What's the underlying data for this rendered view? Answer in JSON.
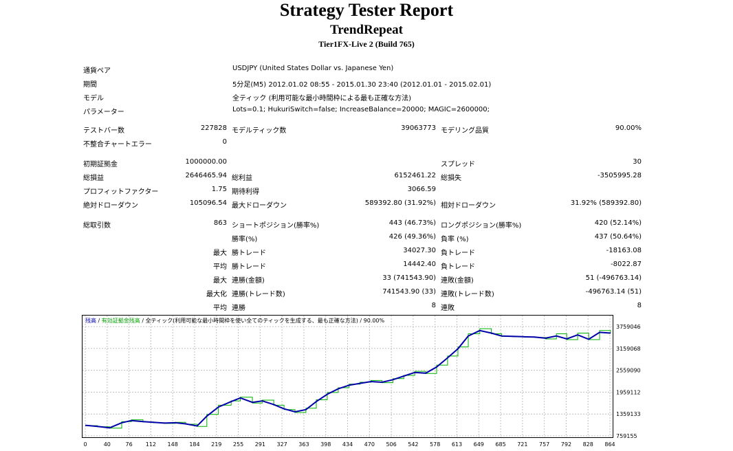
{
  "header": {
    "title": "Strategy Tester Report",
    "expert": "TrendRepeat",
    "server": "Tier1FX-Live 2 (Build 765)"
  },
  "info": [
    {
      "label": "通貨ペア",
      "value": "USDJPY (United States Dollar vs. Japanese Yen)"
    },
    {
      "label": "期間",
      "value": "5分足(M5) 2012.01.02 08:55 - 2015.01.30 23:40 (2012.01.01 - 2015.02.01)"
    },
    {
      "label": "モデル",
      "value": "全ティック (利用可能な最小時間枠による最も正確な方法)"
    },
    {
      "label": "パラメーター",
      "value": "Lots=0.1; HukuriSwitch=false; IncreaseBalance=20000; MAGIC=2600000;"
    }
  ],
  "stats": {
    "bars_label": "テストバー数",
    "bars": "227828",
    "ticks_label": "モデルティック数",
    "ticks": "39063773",
    "quality_label": "モデリング品質",
    "quality": "90.00%",
    "mismatch_label": "不整合チャートエラー",
    "mismatch": "0",
    "deposit_label": "初期証拠金",
    "deposit": "1000000.00",
    "spread_label": "スプレッド",
    "spread": "30",
    "net_label": "総損益",
    "net": "2646465.94",
    "gross_profit_label": "総利益",
    "gross_profit": "6152461.22",
    "gross_loss_label": "総損失",
    "gross_loss": "-3505995.28",
    "pf_label": "プロフィットファクター",
    "pf": "1.75",
    "expected_label": "期待利得",
    "expected": "3066.59",
    "abs_dd_label": "絶対ドローダウン",
    "abs_dd": "105096.54",
    "max_dd_label": "最大ドローダウン",
    "max_dd": "589392.80 (31.92%)",
    "rel_dd_label": "相対ドローダウン",
    "rel_dd": "31.92% (589392.80)",
    "total_trades_label": "総取引数",
    "total_trades": "863",
    "short_label": "ショートポジション(勝率%)",
    "short": "443 (46.73%)",
    "long_label": "ロングポジション(勝率%)",
    "long": "420 (52.14%)",
    "win_rate_label": "勝率(%)",
    "win_rate": "426 (49.36%)",
    "loss_rate_label": "負率 (%)",
    "loss_rate": "437 (50.64%)",
    "max_label": "最大",
    "avg_label": "平均",
    "maximal_label": "最大化",
    "profit_trade_label": "勝トレード",
    "largest_profit": "34027.30",
    "loss_trade_label": "負トレード",
    "largest_loss": "-18163.08",
    "avg_profit": "14442.40",
    "avg_loss": "-8022.87",
    "cons_wins_money_label": "連勝(金額)",
    "cons_wins_money": "33 (741543.90)",
    "cons_losses_money_label": "連敗(金額)",
    "cons_losses_money": "51 (-496763.14)",
    "cons_profit_count_label": "連勝(トレード数)",
    "cons_profit_count": "741543.90 (33)",
    "cons_loss_count_label": "連敗(トレード数)",
    "cons_loss_count": "-496763.14 (51)",
    "avg_cons_wins_label": "連勝",
    "avg_cons_wins": "8",
    "avg_cons_losses_label": "連敗",
    "avg_cons_losses": "8"
  },
  "chart_data": {
    "type": "line",
    "legend": {
      "balance": "残高",
      "sep1": " / ",
      "equity": "有効証拠金残高",
      "sep2": " / ",
      "model": "全ティック(利用可能な最小時間枠を使い全てのティックを生成する、最も正確な方法) / 90.00%"
    },
    "colors": {
      "balance": "#0000a8",
      "equity": "#00b000",
      "grid": "#c0c0c0"
    },
    "xticks": [
      "0",
      "40",
      "76",
      "112",
      "148",
      "184",
      "219",
      "255",
      "291",
      "327",
      "363",
      "398",
      "434",
      "470",
      "506",
      "542",
      "578",
      "613",
      "649",
      "685",
      "721",
      "757",
      "792",
      "828",
      "864"
    ],
    "yticks": [
      "3759046",
      "3159068",
      "2559090",
      "1959112",
      "1359133",
      "759155"
    ],
    "ylim": [
      759155,
      3759046
    ],
    "xlim": [
      0,
      863
    ],
    "series": [
      {
        "key": "balance",
        "x": [
          0,
          20,
          40,
          60,
          76,
          95,
          112,
          130,
          148,
          165,
          184,
          200,
          219,
          240,
          255,
          275,
          291,
          310,
          327,
          345,
          363,
          380,
          398,
          416,
          434,
          452,
          470,
          488,
          506,
          524,
          542,
          560,
          578,
          596,
          613,
          630,
          649,
          668,
          685,
          703,
          721,
          739,
          757,
          775,
          792,
          810,
          828,
          846,
          864
        ],
        "y": [
          1050000,
          1020000,
          980000,
          1120000,
          1180000,
          1150000,
          1130000,
          1110000,
          1120000,
          1090000,
          1030000,
          1300000,
          1550000,
          1700000,
          1800000,
          1680000,
          1720000,
          1620000,
          1500000,
          1420000,
          1480000,
          1700000,
          1900000,
          2050000,
          2150000,
          2200000,
          2250000,
          2230000,
          2300000,
          2400000,
          2500000,
          2480000,
          2650000,
          2900000,
          3150000,
          3500000,
          3650000,
          3580000,
          3500000,
          3490000,
          3480000,
          3470000,
          3440000,
          3500000,
          3420000,
          3530000,
          3410000,
          3600000,
          3580000
        ]
      },
      {
        "key": "equity",
        "x": [
          0,
          20,
          40,
          60,
          76,
          95,
          112,
          130,
          148,
          165,
          184,
          200,
          219,
          240,
          255,
          275,
          291,
          310,
          327,
          345,
          363,
          380,
          398,
          416,
          434,
          452,
          470,
          488,
          506,
          524,
          542,
          560,
          578,
          596,
          613,
          630,
          649,
          668,
          685,
          703,
          721,
          739,
          757,
          775,
          792,
          810,
          828,
          846,
          864
        ],
        "y": [
          1040000,
          1010000,
          970000,
          1150000,
          1200000,
          1140000,
          1120000,
          1100000,
          1130000,
          1080000,
          1020000,
          1350000,
          1600000,
          1720000,
          1820000,
          1660000,
          1740000,
          1600000,
          1480000,
          1400000,
          1520000,
          1750000,
          1950000,
          2080000,
          2180000,
          2230000,
          2280000,
          2220000,
          2330000,
          2420000,
          2530000,
          2470000,
          2700000,
          2950000,
          3200000,
          3560000,
          3700000,
          3560000,
          3490000,
          3480000,
          3470000,
          3460000,
          3420000,
          3560000,
          3400000,
          3580000,
          3400000,
          3650000,
          3570000
        ]
      }
    ]
  }
}
